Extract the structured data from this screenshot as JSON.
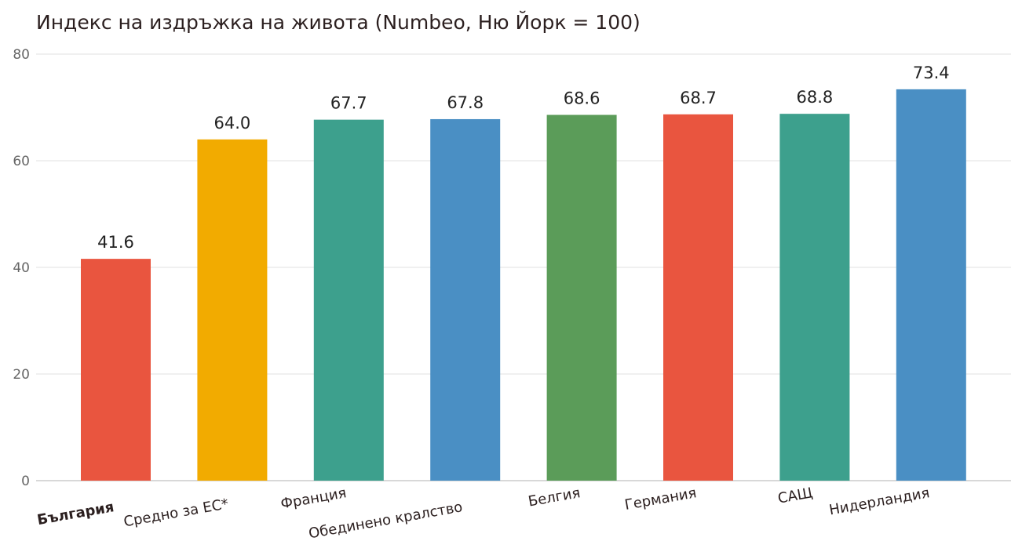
{
  "chart_data": {
    "type": "bar",
    "title": "Индекс на издръжка на живота (Numbeo, Ню Йорк = 100)",
    "xlabel": "",
    "ylabel": "",
    "ylim": [
      0,
      80
    ],
    "yticks": [
      0,
      20,
      40,
      60,
      80
    ],
    "grid": true,
    "categories": [
      "България",
      "Средно за ЕС*",
      "Франция",
      "Обединено кралство",
      "Белгия",
      "Германия",
      "САЩ",
      "Нидерландия"
    ],
    "values": [
      41.6,
      64.0,
      67.7,
      67.8,
      68.6,
      68.7,
      68.8,
      73.4
    ],
    "value_labels": [
      "41.6",
      "64.0",
      "67.7",
      "67.8",
      "68.6",
      "68.7",
      "68.8",
      "73.4"
    ],
    "colors": [
      "#e9553f",
      "#f2ab00",
      "#3da08d",
      "#4a8fc4",
      "#5b9c59",
      "#e9553f",
      "#3da08d",
      "#4a8fc4"
    ],
    "highlight_category": "България"
  }
}
